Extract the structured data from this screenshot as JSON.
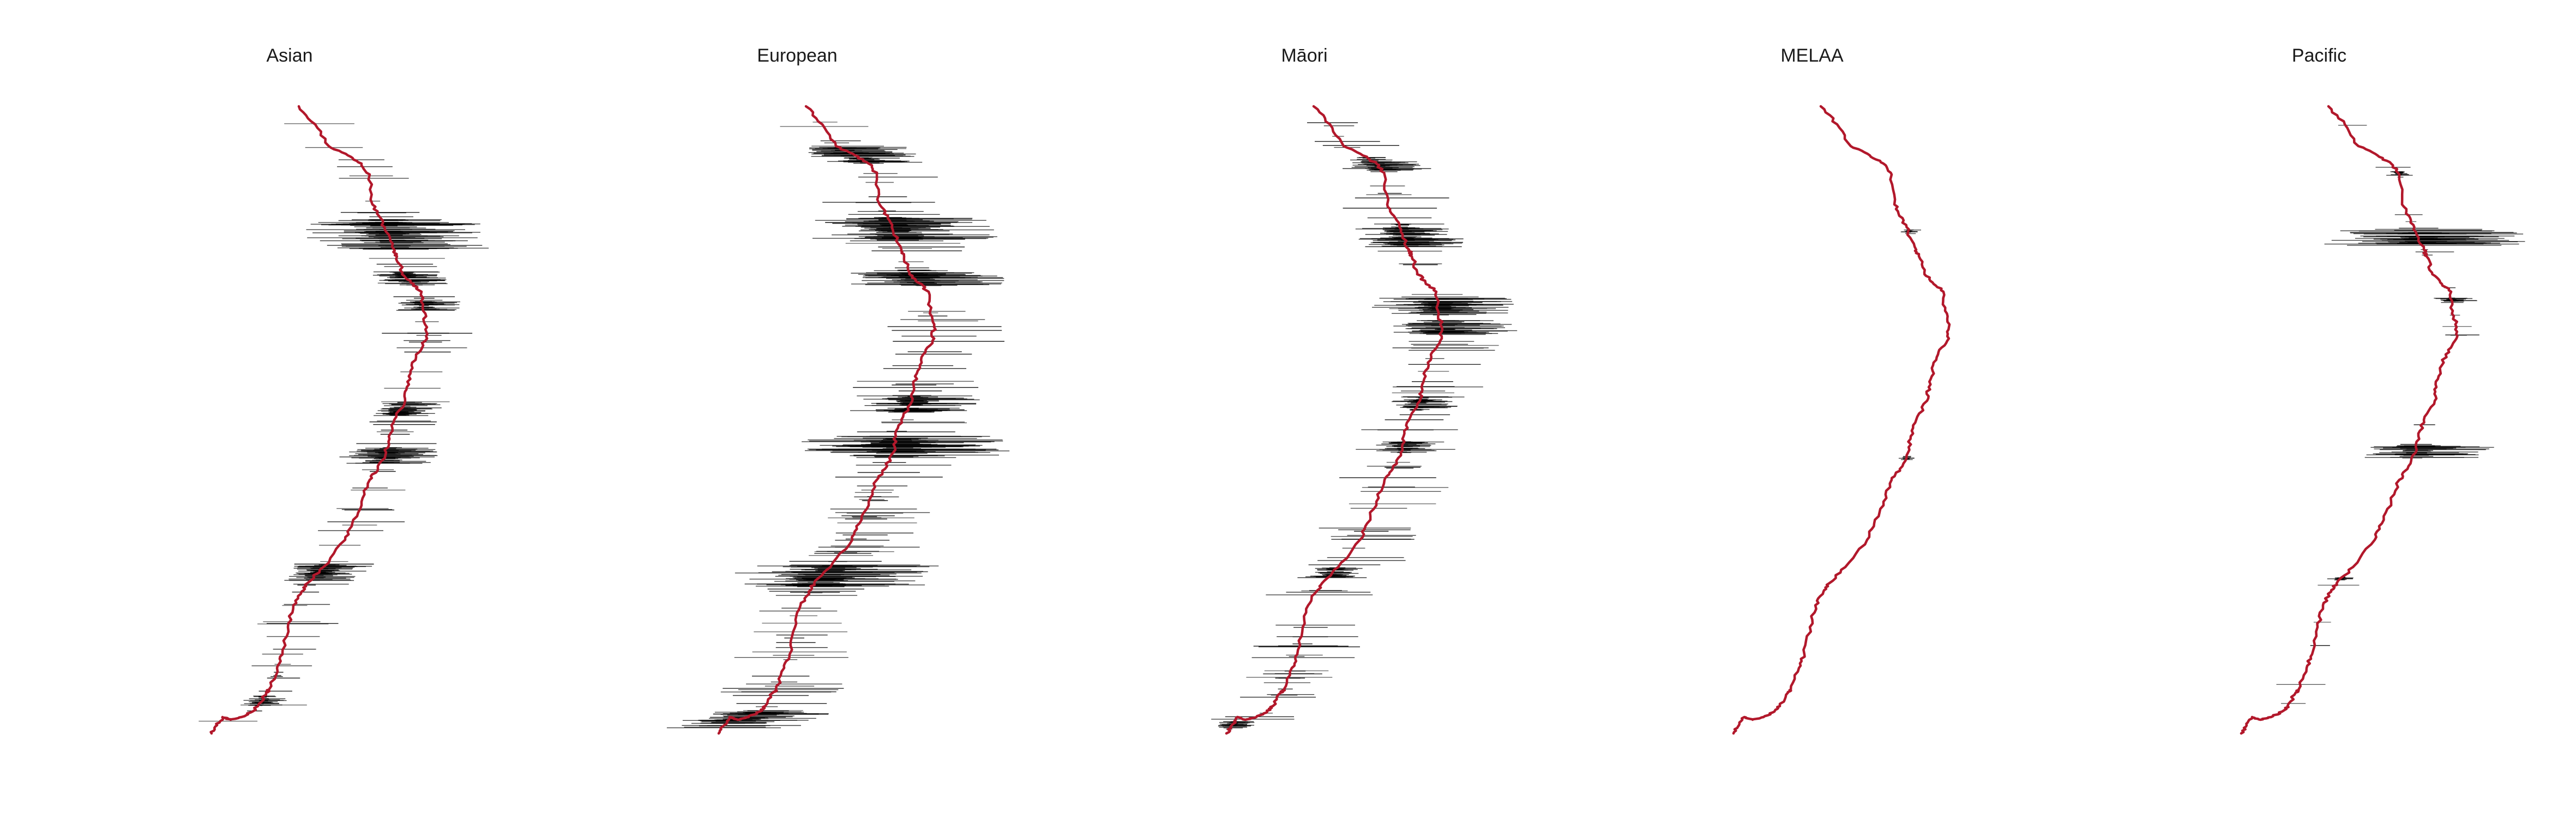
{
  "chart_data": {
    "type": "line",
    "panels": [
      "Asian",
      "European",
      "Māori",
      "MELAA",
      "Pacific"
    ],
    "colors": {
      "route": "#b2182b",
      "bars": "#000000",
      "background": "#ffffff"
    },
    "axes_visible": false,
    "grid": false,
    "legend": "none"
  }
}
